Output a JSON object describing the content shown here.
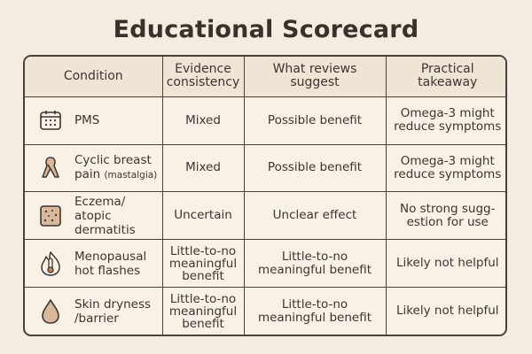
{
  "title": "Educational Scorecard",
  "headers": {
    "condition": "Condition",
    "evidence": "Evidence consistency",
    "reviews": "What reviews suggest",
    "takeaway": "Practical takeaway"
  },
  "rows": [
    {
      "icon": "calendar-icon",
      "condition": "PMS",
      "condition_note": "",
      "evidence": "Mixed",
      "reviews": "Possible benefit",
      "takeaway": "Omega-3 might reduce symptoms"
    },
    {
      "icon": "ribbon-icon",
      "condition": "Cyclic breast pain",
      "condition_note": "(mastalgia)",
      "evidence": "Mixed",
      "reviews": "Possible benefit",
      "takeaway": "Omega-3 might reduce symptoms"
    },
    {
      "icon": "skin-patch-icon",
      "condition": "Eczema/ atopic dermatitis",
      "condition_note": "",
      "evidence": "Uncertain",
      "reviews": "Unclear effect",
      "takeaway": "No strong sugg-estion for use"
    },
    {
      "icon": "thermometer-flame-icon",
      "condition": "Menopausal hot flashes",
      "condition_note": "",
      "evidence": "Little-to-no meaningful benefit",
      "reviews": "Little-to-no meaningful benefit",
      "takeaway": "Likely not helpful"
    },
    {
      "icon": "droplet-icon",
      "condition": "Skin dryness /barrier",
      "condition_note": "",
      "evidence": "Little-to-no meaningful benefit",
      "reviews": "Little-to-no meaningful benefit",
      "takeaway": "Likely not helpful"
    }
  ]
}
